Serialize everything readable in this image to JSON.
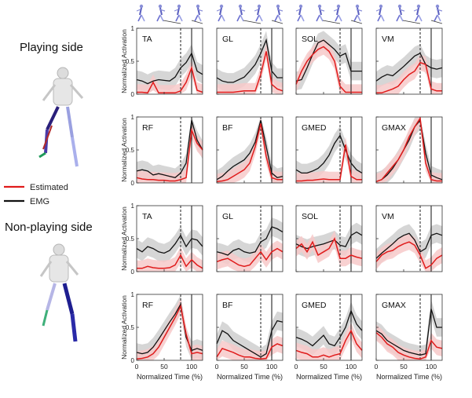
{
  "labels": {
    "playing_side": "Playing side",
    "non_playing_side": "Non-playing side",
    "y_axis": "Normalized Activation",
    "x_axis": "Normalized Time (%)"
  },
  "legend": [
    {
      "label": "Estimated",
      "color": "#e01b1b"
    },
    {
      "label": "EMG",
      "color": "#111111"
    }
  ],
  "colors": {
    "estimated": "#e01b1b",
    "estimated_band": "#f7c9c9",
    "emg": "#111111",
    "emg_band": "#cfcfcf"
  },
  "chart_data": {
    "type": "line",
    "layout": "4 rows x 4 columns small multiples",
    "xlim": [
      0,
      120
    ],
    "ylim": [
      0,
      1
    ],
    "xticks": [
      0,
      50,
      100
    ],
    "yticks": [
      0,
      0.5,
      1
    ],
    "ytick_labels": [
      "0",
      "0.5",
      "1"
    ],
    "x": [
      0,
      10,
      20,
      30,
      40,
      50,
      60,
      70,
      80,
      90,
      100,
      110,
      120
    ],
    "vline_dashed": 80,
    "vline_solid": 100,
    "panels": [
      {
        "row": 0,
        "side": "playing",
        "muscle": "TA",
        "emg": [
          0.22,
          0.2,
          0.16,
          0.2,
          0.22,
          0.21,
          0.2,
          0.26,
          0.4,
          0.48,
          0.62,
          0.35,
          0.3
        ],
        "estimated": [
          0.03,
          0.03,
          0.02,
          0.18,
          0.02,
          0.02,
          0.02,
          0.02,
          0.05,
          0.18,
          0.4,
          0.06,
          0.03
        ]
      },
      {
        "row": 0,
        "side": "playing",
        "muscle": "GL",
        "emg": [
          0.25,
          0.2,
          0.18,
          0.18,
          0.22,
          0.26,
          0.35,
          0.45,
          0.62,
          0.82,
          0.35,
          0.25,
          0.25
        ],
        "estimated": [
          0.03,
          0.03,
          0.03,
          0.03,
          0.04,
          0.05,
          0.05,
          0.05,
          0.3,
          0.65,
          0.15,
          0.08,
          0.05
        ]
      },
      {
        "row": 0,
        "side": "playing",
        "muscle": "SOL",
        "emg": [
          0.2,
          0.22,
          0.4,
          0.6,
          0.78,
          0.82,
          0.75,
          0.68,
          0.58,
          0.62,
          0.35,
          0.35,
          0.35
        ],
        "estimated": [
          0.15,
          0.35,
          0.5,
          0.6,
          0.68,
          0.72,
          0.65,
          0.5,
          0.12,
          0.03,
          0.03,
          0.03,
          0.03
        ]
      },
      {
        "row": 0,
        "side": "playing",
        "muscle": "VM",
        "emg": [
          0.2,
          0.26,
          0.3,
          0.28,
          0.35,
          0.42,
          0.5,
          0.58,
          0.62,
          0.45,
          0.4,
          0.38,
          0.4
        ],
        "estimated": [
          0.02,
          0.02,
          0.05,
          0.08,
          0.12,
          0.22,
          0.3,
          0.35,
          0.48,
          0.45,
          0.08,
          0.05,
          0.05
        ]
      },
      {
        "row": 1,
        "side": "playing",
        "muscle": "RF",
        "emg": [
          0.18,
          0.2,
          0.18,
          0.12,
          0.14,
          0.12,
          0.1,
          0.08,
          0.15,
          0.3,
          0.95,
          0.65,
          0.5
        ],
        "estimated": [
          0.08,
          0.06,
          0.05,
          0.05,
          0.04,
          0.04,
          0.03,
          0.03,
          0.05,
          0.08,
          0.8,
          0.6,
          0.5
        ]
      },
      {
        "row": 1,
        "side": "playing",
        "muscle": "BF",
        "emg": [
          0.05,
          0.1,
          0.18,
          0.25,
          0.3,
          0.35,
          0.45,
          0.62,
          0.95,
          0.55,
          0.15,
          0.08,
          0.1
        ],
        "estimated": [
          0.02,
          0.03,
          0.05,
          0.1,
          0.15,
          0.2,
          0.3,
          0.55,
          0.9,
          0.4,
          0.08,
          0.05,
          0.05
        ]
      },
      {
        "row": 1,
        "side": "playing",
        "muscle": "GMED",
        "emg": [
          0.2,
          0.15,
          0.15,
          0.18,
          0.22,
          0.3,
          0.42,
          0.6,
          0.72,
          0.5,
          0.3,
          0.2,
          0.15
        ],
        "estimated": [
          0.03,
          0.03,
          0.04,
          0.04,
          0.05,
          0.06,
          0.05,
          0.05,
          0.05,
          0.58,
          0.1,
          0.05,
          0.05
        ]
      },
      {
        "row": 1,
        "side": "playing",
        "muscle": "GMAX",
        "emg": [
          0.02,
          0.05,
          0.12,
          0.22,
          0.35,
          0.5,
          0.65,
          0.85,
          0.95,
          0.45,
          0.12,
          0.08,
          0.05
        ],
        "estimated": [
          0.02,
          0.05,
          0.15,
          0.25,
          0.35,
          0.5,
          0.7,
          0.85,
          0.98,
          0.3,
          0.05,
          0.03,
          0.03
        ]
      },
      {
        "row": 2,
        "side": "non-playing",
        "muscle": "TA",
        "emg": [
          0.35,
          0.3,
          0.38,
          0.35,
          0.3,
          0.28,
          0.32,
          0.42,
          0.55,
          0.38,
          0.5,
          0.48,
          0.38
        ],
        "estimated": [
          0.05,
          0.05,
          0.08,
          0.06,
          0.05,
          0.05,
          0.06,
          0.1,
          0.25,
          0.08,
          0.18,
          0.1,
          0.05
        ]
      },
      {
        "row": 2,
        "side": "non-playing",
        "muscle": "GL",
        "emg": [
          0.3,
          0.28,
          0.25,
          0.32,
          0.35,
          0.3,
          0.28,
          0.3,
          0.45,
          0.5,
          0.68,
          0.65,
          0.6
        ],
        "estimated": [
          0.15,
          0.18,
          0.2,
          0.15,
          0.1,
          0.08,
          0.1,
          0.2,
          0.3,
          0.18,
          0.3,
          0.35,
          0.3
        ]
      },
      {
        "row": 2,
        "side": "non-playing",
        "muscle": "SOL",
        "emg": [
          0.42,
          0.38,
          0.35,
          0.38,
          0.4,
          0.42,
          0.45,
          0.48,
          0.4,
          0.38,
          0.55,
          0.6,
          0.55
        ],
        "estimated": [
          0.35,
          0.42,
          0.3,
          0.45,
          0.25,
          0.3,
          0.35,
          0.5,
          0.2,
          0.2,
          0.25,
          0.22,
          0.2
        ]
      },
      {
        "row": 2,
        "side": "non-playing",
        "muscle": "VM",
        "emg": [
          0.2,
          0.28,
          0.35,
          0.42,
          0.5,
          0.55,
          0.58,
          0.48,
          0.3,
          0.35,
          0.55,
          0.58,
          0.55
        ],
        "estimated": [
          0.15,
          0.25,
          0.3,
          0.32,
          0.38,
          0.42,
          0.45,
          0.4,
          0.25,
          0.05,
          0.1,
          0.2,
          0.25
        ]
      },
      {
        "row": 3,
        "side": "non-playing",
        "muscle": "RF",
        "emg": [
          0.12,
          0.1,
          0.12,
          0.2,
          0.32,
          0.45,
          0.58,
          0.7,
          0.85,
          0.35,
          0.15,
          0.18,
          0.15
        ],
        "estimated": [
          0.02,
          0.03,
          0.05,
          0.1,
          0.2,
          0.35,
          0.5,
          0.65,
          0.82,
          0.4,
          0.1,
          0.12,
          0.1
        ]
      },
      {
        "row": 3,
        "side": "non-playing",
        "muscle": "BF",
        "emg": [
          0.25,
          0.45,
          0.4,
          0.3,
          0.25,
          0.2,
          0.15,
          0.1,
          0.05,
          0.1,
          0.45,
          0.6,
          0.58
        ],
        "estimated": [
          0.05,
          0.18,
          0.15,
          0.12,
          0.08,
          0.05,
          0.05,
          0.03,
          0.02,
          0.03,
          0.2,
          0.25,
          0.22
        ]
      },
      {
        "row": 3,
        "side": "non-playing",
        "muscle": "GMED",
        "emg": [
          0.35,
          0.32,
          0.28,
          0.22,
          0.3,
          0.38,
          0.25,
          0.22,
          0.35,
          0.5,
          0.75,
          0.55,
          0.45
        ],
        "estimated": [
          0.15,
          0.12,
          0.1,
          0.05,
          0.05,
          0.08,
          0.05,
          0.08,
          0.1,
          0.3,
          0.45,
          0.25,
          0.15
        ]
      },
      {
        "row": 3,
        "side": "non-playing",
        "muscle": "GMAX",
        "emg": [
          0.45,
          0.4,
          0.3,
          0.25,
          0.2,
          0.15,
          0.12,
          0.1,
          0.08,
          0.1,
          0.78,
          0.5,
          0.5
        ],
        "estimated": [
          0.42,
          0.35,
          0.25,
          0.2,
          0.12,
          0.08,
          0.05,
          0.03,
          0.02,
          0.05,
          0.3,
          0.2,
          0.18
        ]
      }
    ]
  }
}
